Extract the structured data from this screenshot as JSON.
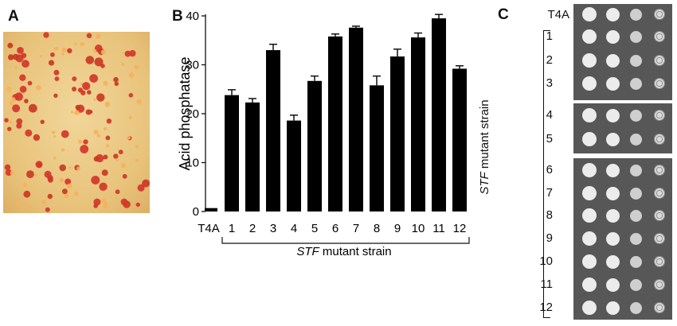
{
  "panels": {
    "a_letter": "A",
    "b_letter": "B",
    "c_letter": "C"
  },
  "panel_c": {
    "control_label": "T4A",
    "strain_labels": [
      "1",
      "2",
      "3",
      "4",
      "5",
      "6",
      "7",
      "8",
      "9",
      "10",
      "11",
      "12"
    ],
    "axis_title_italic": "STF",
    "axis_title_rest": " mutant strain",
    "plate_color": "#575757"
  },
  "chart_data": {
    "type": "bar",
    "categories": [
      "T4A",
      "1",
      "2",
      "3",
      "4",
      "5",
      "6",
      "7",
      "8",
      "9",
      "10",
      "11",
      "12"
    ],
    "series": [
      {
        "values": [
          0.7,
          23.8,
          22.3,
          33.0,
          18.6,
          26.7,
          35.8,
          37.6,
          25.8,
          31.7,
          35.6,
          39.5,
          29.2
        ],
        "errors": [
          0.0,
          1.1,
          0.8,
          1.2,
          1.1,
          1.0,
          0.5,
          0.3,
          1.9,
          1.5,
          0.9,
          0.8,
          0.6
        ]
      }
    ],
    "ylabel": "Acid phosphatase",
    "ylim": [
      0,
      40
    ],
    "yticks": [
      0,
      10,
      20,
      30,
      40
    ],
    "bracket_label_italic": "STF",
    "bracket_label_rest": " mutant strain",
    "bar_color": "#000000",
    "grid": false
  }
}
